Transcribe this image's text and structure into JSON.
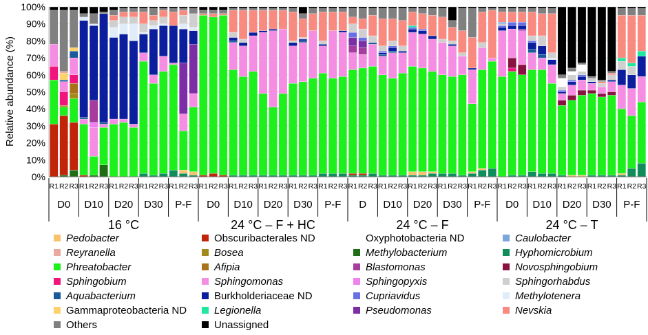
{
  "chart_data": {
    "type": "bar",
    "stacked": true,
    "ylabel": "Relative abundance (%)",
    "ylim": [
      0,
      100
    ],
    "ytick_labels": [
      "0%",
      "10%",
      "20%",
      "30%",
      "40%",
      "50%",
      "60%",
      "70%",
      "80%",
      "90%",
      "100%"
    ],
    "replicate_labels": [
      "R1",
      "R2",
      "R3"
    ],
    "conditions": [
      {
        "label": "16 °C",
        "timepoints": [
          "D0",
          "D10",
          "D20",
          "D30",
          "P-F"
        ]
      },
      {
        "label": "24 °C – F + HC",
        "timepoints": [
          "D0",
          "D10",
          "D20",
          "D30",
          "P-F"
        ]
      },
      {
        "label": "24 °C – F",
        "timepoints": [
          "D",
          "D10",
          "D20",
          "D30",
          "P-F"
        ]
      },
      {
        "label": "24 °C – T",
        "timepoints": [
          "D0",
          "D10",
          "D20",
          "D30",
          "P-F"
        ]
      }
    ],
    "taxa": [
      {
        "name": "Pedobacter",
        "italic": true,
        "color": "#f7c26b"
      },
      {
        "name": "Obscuribacterales ND",
        "italic": false,
        "color": "#c0250a"
      },
      {
        "name": "Oxyphotobacteria ND",
        "italic": false,
        "color": "#ffffff"
      },
      {
        "name": "Caulobacter",
        "italic": true,
        "color": "#7aa6d8"
      },
      {
        "name": "Reyranella",
        "italic": true,
        "color": "#e8aaa0"
      },
      {
        "name": "Bosea",
        "italic": true,
        "color": "#a3891a"
      },
      {
        "name": "Methylobacterium",
        "italic": true,
        "color": "#1f6d14"
      },
      {
        "name": "Hyphomicrobium",
        "italic": true,
        "color": "#0f8e5c"
      },
      {
        "name": "Phreatobacter",
        "italic": true,
        "color": "#1ef01e"
      },
      {
        "name": "Afipia",
        "italic": true,
        "color": "#a8721a"
      },
      {
        "name": "Blastomonas",
        "italic": true,
        "color": "#a53c9e"
      },
      {
        "name": "Novosphingobium",
        "italic": true,
        "color": "#8a1240"
      },
      {
        "name": "Sphingobium",
        "italic": true,
        "color": "#f0147c"
      },
      {
        "name": "Sphingomonas",
        "italic": true,
        "color": "#f58ee2"
      },
      {
        "name": "Sphingopyxis",
        "italic": true,
        "color": "#ee82ee"
      },
      {
        "name": "Sphingorhabdus",
        "italic": true,
        "color": "#cfcfcf"
      },
      {
        "name": "Aquabacterium",
        "italic": true,
        "color": "#1a5a9a"
      },
      {
        "name": "Burkholderiaceae ND",
        "italic": false,
        "color": "#0b1e9e"
      },
      {
        "name": "Cupriavidus",
        "italic": true,
        "color": "#6870e6"
      },
      {
        "name": "Methylotenera",
        "italic": true,
        "color": "#e0ecf8"
      },
      {
        "name": "Gammaproteobacteria ND",
        "italic": false,
        "color": "#fcd36a"
      },
      {
        "name": "Legionella",
        "italic": true,
        "color": "#1ee8a0"
      },
      {
        "name": "Pseudomonas",
        "italic": true,
        "color": "#7b2ea6"
      },
      {
        "name": "Nevskia",
        "italic": true,
        "color": "#f88a80"
      },
      {
        "name": "Others",
        "italic": false,
        "color": "#808080"
      },
      {
        "name": "Unassigned",
        "italic": false,
        "color": "#000000"
      }
    ],
    "series_order": [
      "Hyphomicrobium",
      "Methylobacterium",
      "Obscuribacterales ND",
      "Pedobacter",
      "Phreatobacter",
      "Bosea",
      "Afipia",
      "Sphingobium",
      "Novosphingobium",
      "Sphingomonas",
      "Sphingopyxis",
      "Blastomonas",
      "Pseudomonas",
      "Aquabacterium",
      "Burkholderiaceae ND",
      "Cupriavidus",
      "Methylotenera",
      "Sphingorhabdus",
      "Legionella",
      "Gammaproteobacteria ND",
      "Reyranella",
      "Caulobacter",
      "Oxyphotobacteria ND",
      "Nevskia",
      "Others",
      "Unassigned"
    ],
    "samples": [
      {
        "Obscuribacterales ND": 31,
        "Phreatobacter": 26,
        "Sphingobium": 8,
        "Sphingomonas": 13,
        "Others": 20,
        "Unassigned": 2
      },
      {
        "Obscuribacterales ND": 35,
        "Bosea": 1,
        "Methylobacterium": 1,
        "Phreatobacter": 5,
        "Sphingobium": 8,
        "Sphingomonas": 6,
        "Aquabacterium": 1,
        "Gammaproteobacteria ND": 4,
        "Reyranella": 1,
        "Others": 36,
        "Unassigned": 2
      },
      {
        "Obscuribacterales ND": 28,
        "Methylobacterium": 4,
        "Phreatobacter": 14,
        "Bosea": 3,
        "Afipia": 6,
        "Sphingobium": 5,
        "Sphingomonas": 10,
        "Aquabacterium": 4,
        "Gammaproteobacteria ND": 2,
        "Others": 22,
        "Unassigned": 2
      },
      {
        "Obscuribacterales ND": 1,
        "Phreatobacter": 30,
        "Sphingomonas": 3,
        "Aquabacterium": 1,
        "Burkholderiaceae ND": 57,
        "Methylotenera": 2,
        "Others": 2,
        "Unassigned": 4
      },
      {
        "Methylobacterium": 1,
        "Phreatobacter": 11,
        "Sphingomonas": 17,
        "Sphingopyxis": 3,
        "Burkholderiaceae ND": 44,
        "Blastomonas": 13,
        "Methylotenera": 1,
        "Others": 6,
        "Unassigned": 4
      },
      {
        "Methylobacterium": 7,
        "Phreatobacter": 22,
        "Sphingomonas": 2,
        "Aquabacterium": 1,
        "Burkholderiaceae ND": 64,
        "Others": 1,
        "Unassigned": 3
      },
      {
        "Phreatobacter": 31,
        "Sphingomonas": 3,
        "Sphingorhabdus": 4,
        "Burkholderiaceae ND": 48,
        "Methylotenera": 6,
        "Nevskia": 3,
        "Others": 3,
        "Unassigned": 2
      },
      {
        "Phreatobacter": 32,
        "Sphingomonas": 2,
        "Sphingorhabdus": 4,
        "Burkholderiaceae ND": 50,
        "Methylotenera": 6,
        "Nevskia": 3,
        "Others": 2,
        "Unassigned": 1
      },
      {
        "Phreatobacter": 29,
        "Sphingomonas": 2,
        "Sphingorhabdus": 4,
        "Burkholderiaceae ND": 49,
        "Methylotenera": 10,
        "Nevskia": 3,
        "Others": 2,
        "Unassigned": 1
      },
      {
        "Hyphomicrobium": 2,
        "Phreatobacter": 66,
        "Sphingomonas": 5,
        "Sphingorhabdus": 5,
        "Burkholderiaceae ND": 11,
        "Methylotenera": 1,
        "Nevskia": 7,
        "Others": 2,
        "Unassigned": 1
      },
      {
        "Hyphomicrobium": 1,
        "Phreatobacter": 54,
        "Sphingomonas": 5,
        "Sphingorhabdus": 3,
        "Burkholderiaceae ND": 27,
        "Methylotenera": 2,
        "Nevskia": 3,
        "Others": 4,
        "Unassigned": 1
      },
      {
        "Hyphomicrobium": 2,
        "Phreatobacter": 60,
        "Sphingomonas": 9,
        "Sphingorhabdus": 4,
        "Burkholderiaceae ND": 18,
        "Methylotenera": 1,
        "Nevskia": 4,
        "Others": 1,
        "Unassigned": 1
      },
      {
        "Hyphomicrobium": 4,
        "Phreatobacter": 62,
        "Burkholderiaceae ND": 22,
        "Sphingomonas": 1,
        "Nevskia": 8,
        "Others": 2,
        "Unassigned": 1
      },
      {
        "Hyphomicrobium": 2,
        "Pedobacter": 2,
        "Phreatobacter": 23,
        "Sphingomonas": 10,
        "Sphingorhabdus": 5,
        "Methylotenera": 3,
        "Pseudomonas": 30,
        "Burkholderiaceae ND": 20,
        "Nevskia": 3,
        "Others": 1,
        "Unassigned": 1
      },
      {
        "Hyphomicrobium": 1,
        "Pedobacter": 2,
        "Phreatobacter": 38,
        "Sphingomonas": 8,
        "Sphingorhabdus": 8,
        "Burkholderiaceae ND": 8,
        "Pseudomonas": 29,
        "Methylotenera": 2,
        "Others": 3,
        "Unassigned": 1
      },
      {
        "Obscuribacterales ND": 1,
        "Phreatobacter": 94,
        "Nevskia": 1,
        "Others": 2,
        "Unassigned": 2
      },
      {
        "Obscuribacterales ND": 2,
        "Phreatobacter": 92,
        "Nevskia": 2,
        "Others": 2,
        "Unassigned": 2
      },
      {
        "Obscuribacterales ND": 1,
        "Phreatobacter": 94,
        "Nevskia": 1,
        "Others": 2,
        "Unassigned": 2
      },
      {
        "Hyphomicrobium": 1,
        "Phreatobacter": 62,
        "Sphingomonas": 16,
        "Sphingorhabdus": 3,
        "Aquabacterium": 1,
        "Burkholderiaceae ND": 2,
        "Nevskia": 13,
        "Others": 1,
        "Unassigned": 1
      },
      {
        "Hyphomicrobium": 1,
        "Phreatobacter": 58,
        "Sphingomonas": 18,
        "Sphingorhabdus": 2,
        "Burkholderiaceae ND": 2,
        "Nevskia": 17,
        "Others": 1,
        "Unassigned": 1
      },
      {
        "Hyphomicrobium": 1,
        "Phreatobacter": 61,
        "Sphingomonas": 21,
        "Burkholderiaceae ND": 2,
        "Nevskia": 13,
        "Others": 1,
        "Unassigned": 1
      },
      {
        "Hyphomicrobium": 1,
        "Phreatobacter": 48,
        "Sphingomonas": 36,
        "Burkholderiaceae ND": 1,
        "Nevskia": 12,
        "Others": 1,
        "Unassigned": 1
      },
      {
        "Hyphomicrobium": 1,
        "Phreatobacter": 40,
        "Sphingomonas": 45,
        "Burkholderiaceae ND": 1,
        "Nevskia": 11,
        "Others": 1,
        "Unassigned": 1
      },
      {
        "Hyphomicrobium": 1,
        "Phreatobacter": 48,
        "Sphingomonas": 38,
        "Nevskia": 11,
        "Others": 1,
        "Unassigned": 1
      },
      {
        "Hyphomicrobium": 1,
        "Phreatobacter": 54,
        "Sphingomonas": 22,
        "Sphingorhabdus": 1,
        "Burkholderiaceae ND": 2,
        "Nevskia": 17,
        "Others": 2,
        "Unassigned": 1
      },
      {
        "Hyphomicrobium": 1,
        "Phreatobacter": 55,
        "Sphingomonas": 23,
        "Sphingorhabdus": 1,
        "Aquabacterium": 1,
        "Burkholderiaceae ND": 1,
        "Nevskia": 11,
        "Others": 3,
        "Unassigned": 4
      },
      {
        "Hyphomicrobium": 1,
        "Phreatobacter": 57,
        "Sphingomonas": 28,
        "Nevskia": 10,
        "Others": 3,
        "Unassigned": 1
      },
      {
        "Hyphomicrobium": 2,
        "Phreatobacter": 59,
        "Sphingomonas": 16,
        "Sphingorhabdus": 2,
        "Burkholderiaceae ND": 1,
        "Nevskia": 17,
        "Others": 2,
        "Unassigned": 1
      },
      {
        "Hyphomicrobium": 2,
        "Phreatobacter": 56,
        "Sphingomonas": 28,
        "Nevskia": 11,
        "Others": 2,
        "Unassigned": 1
      },
      {
        "Hyphomicrobium": 2,
        "Phreatobacter": 57,
        "Sphingomonas": 26,
        "Burkholderiaceae ND": 1,
        "Nevskia": 11,
        "Others": 2,
        "Unassigned": 1
      },
      {
        "Hyphomicrobium": 1,
        "Obscuribacterales ND": 1,
        "Phreatobacter": 61,
        "Sphingomonas": 10,
        "Sphingorhabdus": 5,
        "Blastomonas": 4,
        "Pseudomonas": 5,
        "Cupriavidus": 3,
        "Nevskia": 4,
        "Others": 5,
        "Unassigned": 1
      },
      {
        "Hyphomicrobium": 1,
        "Obscuribacterales ND": 1,
        "Phreatobacter": 62,
        "Sphingomonas": 8,
        "Sphingorhabdus": 5,
        "Blastomonas": 4,
        "Pseudomonas": 4,
        "Cupriavidus": 2,
        "Nevskia": 6,
        "Others": 6,
        "Unassigned": 1
      },
      {
        "Hyphomicrobium": 2,
        "Phreatobacter": 63,
        "Sphingomonas": 13,
        "Sphingorhabdus": 4,
        "Aquabacterium": 1,
        "Nevskia": 12,
        "Others": 4,
        "Unassigned": 1
      },
      {
        "Hyphomicrobium": 1,
        "Phreatobacter": 59,
        "Sphingomonas": 11,
        "Sphingorhabdus": 3,
        "Aquabacterium": 1,
        "Burkholderiaceae ND": 1,
        "Cupriavidus": 1,
        "Nevskia": 16,
        "Others": 6,
        "Unassigned": 1
      },
      {
        "Hyphomicrobium": 1,
        "Phreatobacter": 57,
        "Sphingomonas": 15,
        "Sphingorhabdus": 3,
        "Aquabacterium": 1,
        "Burkholderiaceae ND": 2,
        "Cupriavidus": 1,
        "Nevskia": 13,
        "Others": 6,
        "Unassigned": 1
      },
      {
        "Hyphomicrobium": 1,
        "Phreatobacter": 60,
        "Sphingomonas": 12,
        "Sphingorhabdus": 3,
        "Burkholderiaceae ND": 1,
        "Nevskia": 15,
        "Others": 7,
        "Unassigned": 1
      },
      {
        "Hyphomicrobium": 1,
        "Pedobacter": 2,
        "Phreatobacter": 62,
        "Sphingomonas": 20,
        "Burkholderiaceae ND": 2,
        "Cupriavidus": 1,
        "Legionella": 1,
        "Nevskia": 8,
        "Others": 2,
        "Unassigned": 1
      },
      {
        "Hyphomicrobium": 1,
        "Pedobacter": 2,
        "Phreatobacter": 61,
        "Sphingomonas": 20,
        "Burkholderiaceae ND": 2,
        "Cupriavidus": 1,
        "Nevskia": 9,
        "Others": 3,
        "Unassigned": 1
      },
      {
        "Hyphomicrobium": 2,
        "Pedobacter": 1,
        "Phreatobacter": 59,
        "Sphingomonas": 19,
        "Burkholderiaceae ND": 2,
        "Nevskia": 12,
        "Others": 4,
        "Unassigned": 1
      },
      {
        "Hyphomicrobium": 2,
        "Phreatobacter": 58,
        "Sphingomonas": 19,
        "Sphingorhabdus": 2,
        "Nevskia": 13,
        "Others": 5,
        "Unassigned": 1
      },
      {
        "Hyphomicrobium": 2,
        "Phreatobacter": 57,
        "Sphingomonas": 18,
        "Sphingorhabdus": 2,
        "Burkholderiaceae ND": 1,
        "Nevskia": 8,
        "Others": 4,
        "Unassigned": 8
      },
      {
        "Hyphomicrobium": 1,
        "Phreatobacter": 59,
        "Sphingomonas": 11,
        "Sphingorhabdus": 2,
        "Nevskia": 13,
        "Others": 13,
        "Unassigned": 1
      },
      {
        "Hyphomicrobium": 2,
        "Pedobacter": 1,
        "Phreatobacter": 40,
        "Sphingomonas": 20,
        "Burkholderiaceae ND": 1,
        "Nevskia": 18,
        "Others": 17,
        "Unassigned": 1
      },
      {
        "Hyphomicrobium": 4,
        "Pedobacter": 1,
        "Phreatobacter": 58,
        "Sphingomonas": 13,
        "Sphingorhabdus": 3,
        "Nevskia": 18,
        "Others": 2,
        "Unassigned": 1
      },
      {
        "Hyphomicrobium": 5,
        "Phreatobacter": 63,
        "Sphingomonas": 2,
        "Nevskia": 28,
        "Others": 1,
        "Unassigned": 1
      },
      {
        "Caulobacter": 1,
        "Phreatobacter": 59,
        "Sphingomonas": 27,
        "Burkholderiaceae ND": 2,
        "Cupriavidus": 1,
        "Sphingorhabdus": 1,
        "Nevskia": 6,
        "Others": 2,
        "Unassigned": 1
      },
      {
        "Hyphomicrobium": 1,
        "Phreatobacter": 61,
        "Novosphingobium": 6,
        "Sphingobium": 2,
        "Sphingomonas": 17,
        "Burkholderiaceae ND": 2,
        "Cupriavidus": 2,
        "Nevskia": 6,
        "Others": 2,
        "Unassigned": 1
      },
      {
        "Hyphomicrobium": 1,
        "Phreatobacter": 59,
        "Novosphingobium": 6,
        "Sphingomonas": 20,
        "Pseudomonas": 1,
        "Burkholderiaceae ND": 2,
        "Cupriavidus": 2,
        "Nevskia": 6,
        "Others": 2,
        "Unassigned": 1
      },
      {
        "Hyphomicrobium": 3,
        "Phreatobacter": 60,
        "Sphingomonas": 10,
        "Sphingorhabdus": 3,
        "Aquabacterium": 2,
        "Burkholderiaceae ND": 4,
        "Cupriavidus": 1,
        "Nevskia": 14,
        "Others": 2,
        "Unassigned": 1
      },
      {
        "Hyphomicrobium": 2,
        "Phreatobacter": 61,
        "Sphingomonas": 7,
        "Sphingorhabdus": 6,
        "Aquabacterium": 2,
        "Burkholderiaceae ND": 5,
        "Nevskia": 13,
        "Others": 3,
        "Unassigned": 1
      },
      {
        "Hyphomicrobium": 2,
        "Phreatobacter": 53,
        "Sphingomonas": 11,
        "Sphingorhabdus": 3,
        "Burkholderiaceae ND": 3,
        "Methylotenera": 1,
        "Nevskia": 23,
        "Others": 3,
        "Unassigned": 1
      },
      {
        "Oxyphotobacteria ND": 5,
        "Hyphomicrobium": 1,
        "Phreatobacter": 41,
        "Novosphingobium": 3,
        "Sphingomonas": 4,
        "Sphingorhabdus": 2,
        "Burkholderiaceae ND": 1,
        "Cupriavidus": 1,
        "Others": 2,
        "Unassigned": 40
      },
      {
        "Oxyphotobacteria ND": 2,
        "Pedobacter": 1,
        "Phreatobacter": 44,
        "Novosphingobium": 3,
        "Sphingomonas": 6,
        "Sphingorhabdus": 3,
        "Burkholderiaceae ND": 2,
        "Cupriavidus": 1,
        "Others": 2,
        "Unassigned": 36
      },
      {
        "Oxyphotobacteria ND": 4,
        "Pedobacter": 1,
        "Phreatobacter": 47,
        "Novosphingobium": 3,
        "Sphingomonas": 6,
        "Sphingorhabdus": 2,
        "Burkholderiaceae ND": 2,
        "Cupriavidus": 1,
        "Others": 1,
        "Unassigned": 33
      },
      {
        "Hyphomicrobium": 1,
        "Phreatobacter": 48,
        "Novosphingobium": 2,
        "Sphingomonas": 4,
        "Sphingorhabdus": 2,
        "Burkholderiaceae ND": 1,
        "Others": 1,
        "Unassigned": 41
      },
      {
        "Hyphomicrobium": 1,
        "Phreatobacter": 46,
        "Novosphingobium": 2,
        "Sphingomonas": 4,
        "Sphingorhabdus": 2,
        "Nevskia": 1,
        "Others": 1,
        "Unassigned": 43
      },
      {
        "Hyphomicrobium": 1,
        "Phreatobacter": 47,
        "Novosphingobium": 2,
        "Sphingomonas": 6,
        "Sphingorhabdus": 3,
        "Burkholderiaceae ND": 1,
        "Nevskia": 1,
        "Others": 1,
        "Unassigned": 38
      },
      {
        "Hyphomicrobium": 1,
        "Pedobacter": 1,
        "Phreatobacter": 38,
        "Sphingomonas": 14,
        "Sphingorhabdus": 5,
        "Burkholderiaceae ND": 9,
        "Legionella": 2,
        "Nevskia": 25,
        "Others": 4,
        "Unassigned": 1
      },
      {
        "Hyphomicrobium": 5,
        "Phreatobacter": 31,
        "Sphingomonas": 16,
        "Sphingorhabdus": 5,
        "Burkholderiaceae ND": 8,
        "Legionella": 2,
        "Nevskia": 28,
        "Others": 4,
        "Unassigned": 1
      },
      {
        "Hyphomicrobium": 8,
        "Phreatobacter": 36,
        "Sphingomonas": 15,
        "Burkholderiaceae ND": 12,
        "Legionella": 3,
        "Nevskia": 21,
        "Others": 4,
        "Unassigned": 1
      }
    ]
  }
}
